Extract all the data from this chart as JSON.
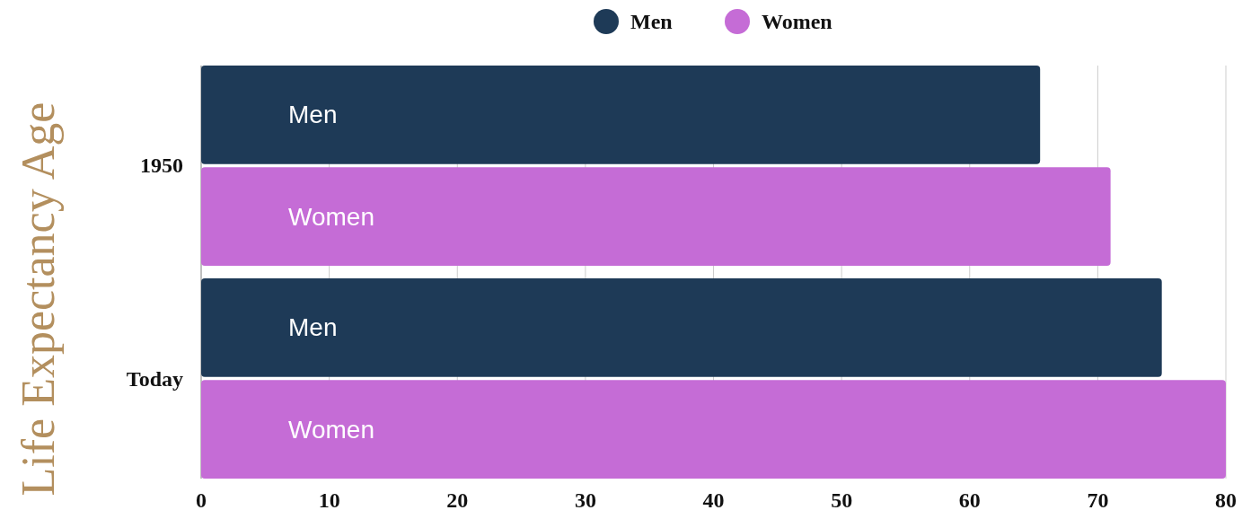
{
  "chart_data": {
    "type": "bar",
    "orientation": "horizontal",
    "ylabel": "Life Expectancy Age",
    "categories": [
      "1950",
      "Today"
    ],
    "series": [
      {
        "name": "Men",
        "color": "#1e3a57",
        "values": [
          65.5,
          75
        ]
      },
      {
        "name": "Women",
        "color": "#c56cd6",
        "values": [
          71,
          80
        ]
      }
    ],
    "xlim": [
      0,
      80
    ],
    "xticks": [
      0,
      10,
      20,
      30,
      40,
      50,
      60,
      70,
      80
    ],
    "grid": "x",
    "legend": "top"
  }
}
